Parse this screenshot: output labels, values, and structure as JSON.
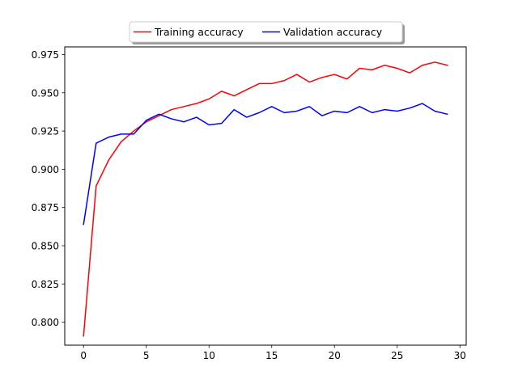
{
  "chart_data": {
    "type": "line",
    "title": "",
    "xlabel": "",
    "ylabel": "",
    "xlim": [
      -1.5,
      30.5
    ],
    "ylim": [
      0.785,
      0.98
    ],
    "xticks": [
      0,
      5,
      10,
      15,
      20,
      25,
      30
    ],
    "xtick_labels": [
      "0",
      "5",
      "10",
      "15",
      "20",
      "25",
      "30"
    ],
    "yticks": [
      0.8,
      0.825,
      0.85,
      0.875,
      0.9,
      0.925,
      0.95,
      0.975
    ],
    "ytick_labels": [
      "0.800",
      "0.825",
      "0.850",
      "0.875",
      "0.900",
      "0.925",
      "0.950",
      "0.975"
    ],
    "grid": false,
    "legend_position": "top-center",
    "x": [
      0,
      1,
      2,
      3,
      4,
      5,
      6,
      7,
      8,
      9,
      10,
      11,
      12,
      13,
      14,
      15,
      16,
      17,
      18,
      19,
      20,
      21,
      22,
      23,
      24,
      25,
      26,
      27,
      28,
      29
    ],
    "series": [
      {
        "name": "Training accuracy",
        "color": "#ff0000",
        "values": [
          0.791,
          0.889,
          0.906,
          0.918,
          0.925,
          0.931,
          0.935,
          0.939,
          0.941,
          0.943,
          0.946,
          0.951,
          0.948,
          0.952,
          0.956,
          0.956,
          0.958,
          0.962,
          0.957,
          0.96,
          0.962,
          0.959,
          0.966,
          0.965,
          0.968,
          0.966,
          0.963,
          0.968,
          0.97,
          0.968
        ]
      },
      {
        "name": "Validation accuracy",
        "color": "#0000ff",
        "values": [
          0.864,
          0.917,
          0.921,
          0.923,
          0.923,
          0.932,
          0.936,
          0.933,
          0.931,
          0.934,
          0.929,
          0.93,
          0.939,
          0.934,
          0.937,
          0.941,
          0.937,
          0.938,
          0.941,
          0.935,
          0.938,
          0.937,
          0.941,
          0.937,
          0.939,
          0.938,
          0.94,
          0.943,
          0.938,
          0.936
        ]
      }
    ]
  }
}
